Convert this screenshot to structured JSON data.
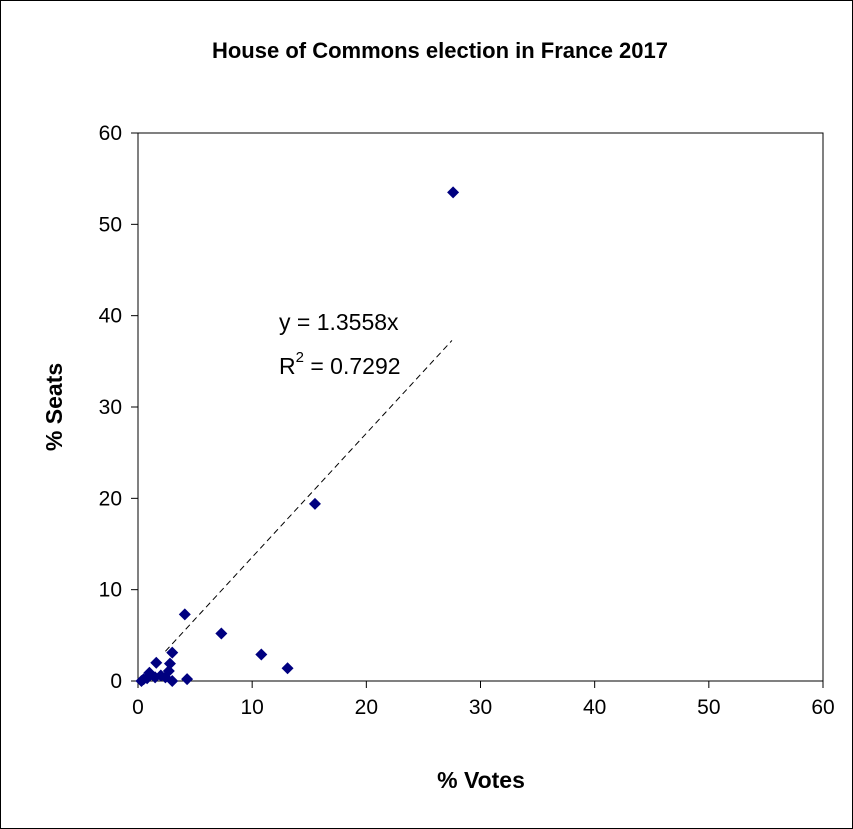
{
  "chart_data": {
    "type": "scatter",
    "title": "House of Commons election in France 2017",
    "xlabel": "% Votes",
    "ylabel": "% Seats",
    "xlim": [
      0,
      60
    ],
    "ylim": [
      0,
      60
    ],
    "xticks": [
      0,
      10,
      20,
      30,
      40,
      50,
      60
    ],
    "yticks": [
      0,
      10,
      20,
      30,
      40,
      50,
      60
    ],
    "grid": false,
    "legend": "none",
    "marker_color": "#000080",
    "points": [
      {
        "x": 27.6,
        "y": 53.5
      },
      {
        "x": 15.5,
        "y": 19.4
      },
      {
        "x": 13.1,
        "y": 1.4
      },
      {
        "x": 10.8,
        "y": 2.9
      },
      {
        "x": 7.3,
        "y": 5.2
      },
      {
        "x": 4.1,
        "y": 7.3
      },
      {
        "x": 4.3,
        "y": 0.2
      },
      {
        "x": 3.0,
        "y": 3.1
      },
      {
        "x": 3.0,
        "y": 0.0
      },
      {
        "x": 2.8,
        "y": 1.9
      },
      {
        "x": 2.7,
        "y": 1.1
      },
      {
        "x": 2.4,
        "y": 0.4
      },
      {
        "x": 2.0,
        "y": 0.6
      },
      {
        "x": 1.6,
        "y": 2.0
      },
      {
        "x": 1.5,
        "y": 0.4
      },
      {
        "x": 1.0,
        "y": 0.9
      },
      {
        "x": 0.8,
        "y": 0.3
      },
      {
        "x": 0.5,
        "y": 0.2
      },
      {
        "x": 0.3,
        "y": 0.0
      }
    ],
    "trendline": {
      "slope": 1.3558,
      "x_range": [
        2.4,
        27.5
      ],
      "style": "dashed",
      "equation": "y = 1.3558x",
      "r2_label": "R",
      "r2_superscript": "2",
      "r2_value": " = 0.7292"
    }
  }
}
